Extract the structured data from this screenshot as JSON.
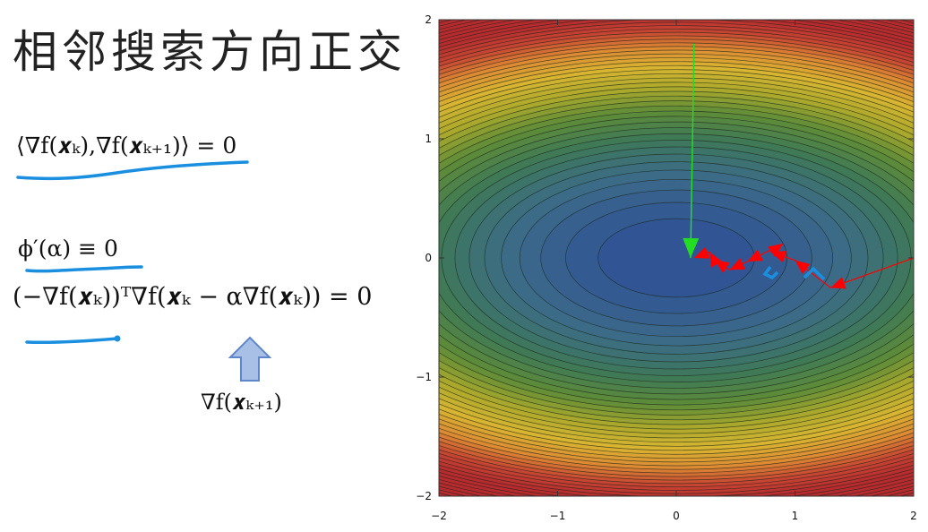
{
  "slide": {
    "title": "相邻搜索方向正交"
  },
  "equations": {
    "orthogonality": "⟨∇f(𝒙ₖ),∇f(𝒙ₖ₊₁)⟩ = 0",
    "phi_derivative": "ϕ′(α) ≡ 0",
    "expanded": "(−∇f(𝒙ₖ))ᵀ∇f(𝒙ₖ − α∇f(𝒙ₖ)) = 0",
    "next_gradient": "∇f(𝒙ₖ₊₁)"
  },
  "colors": {
    "ink_underline": "#1a8fe0",
    "hint_arrow_fill": "#a8c0e6",
    "hint_arrow_stroke": "#5e86c8",
    "path_red": "#ff0000",
    "path_green": "#22dd22",
    "scribble_blue": "#1a8fe0",
    "contour_line": "#1b2a1b"
  },
  "chart_data": {
    "type": "contour",
    "xlim": [
      -2,
      2
    ],
    "ylim": [
      -2,
      2
    ],
    "xticks": [
      "−2",
      "−1",
      "0",
      "1",
      "2"
    ],
    "yticks": [
      "2",
      "1",
      "0",
      "−1",
      "−2"
    ],
    "x_tick_values": [
      -2,
      -1,
      0,
      1,
      2
    ],
    "y_tick_values": [
      2,
      1,
      0,
      -1,
      -2
    ],
    "function": "x^2/4 + y^2",
    "colormap": [
      "#2e4f96",
      "#3c6b8a",
      "#3e7858",
      "#5f8c38",
      "#aeaa2c",
      "#d9b431",
      "#dd8a33",
      "#c84532",
      "#b82a2e"
    ],
    "steepest_descent_path": [
      [
        2.0,
        0.0
      ],
      [
        1.3,
        -0.25
      ],
      [
        1.0,
        -0.02
      ],
      [
        0.8,
        0.05
      ],
      [
        0.9,
        0.12
      ],
      [
        0.6,
        -0.03
      ],
      [
        0.45,
        -0.1
      ],
      [
        0.32,
        -0.02
      ],
      [
        0.28,
        0.05
      ],
      [
        0.15,
        0.0
      ]
    ],
    "green_arrow": [
      [
        0.15,
        1.8
      ],
      [
        0.12,
        0.0
      ]
    ],
    "minimum": [
      0,
      0
    ]
  }
}
